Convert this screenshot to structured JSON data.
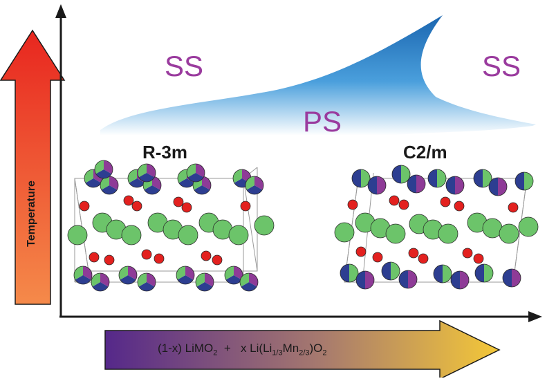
{
  "regions": {
    "ss_left": "SS",
    "ps": "PS",
    "ss_right": "SS"
  },
  "phases": {
    "left": "R-3m",
    "right": "C2/m"
  },
  "axis": {
    "temperature": "Temperature"
  },
  "composition": {
    "p1": "(1-x) LiMO",
    "s1": "2",
    "p2": "  +   x Li(Li",
    "s2": "1/3",
    "p3": "Mn",
    "s3": "2/3",
    "p4": ")O",
    "s4": "2"
  },
  "colors": {
    "region_text": "#9a3b9e",
    "dome_top": "#1f6fb5",
    "dome_bottom": "#ffffff",
    "temp_arrow_top": "#e8261f",
    "temp_arrow_bottom": "#f47a3a",
    "comp_arrow_left": "#5a2a86",
    "comp_arrow_right": "#f2c33b",
    "green_atom": "#6cc46a",
    "red_atom": "#e3211f",
    "blue_atom": "#2d3e91",
    "purple_atom": "#8e3b97"
  }
}
